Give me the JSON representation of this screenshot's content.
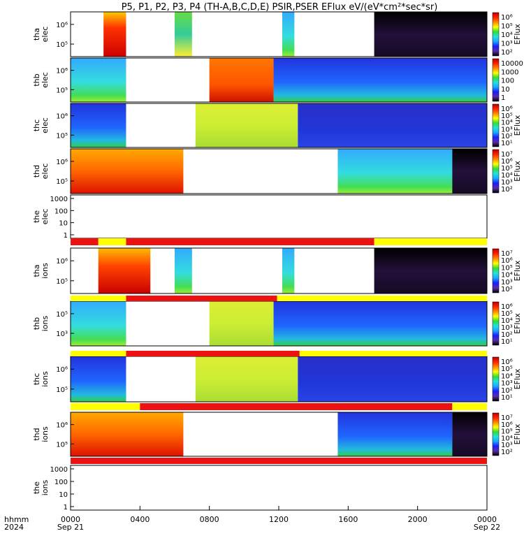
{
  "title": "P5, P1, P2, P3, P4 (TH-A,B,C,D,E) PSIR,PSER EFlux eV/(eV*cm²*sec*sr)",
  "footer": {
    "row1": "hhmm",
    "row2": "2024",
    "xticks": [
      "0000",
      "0400",
      "0800",
      "1200",
      "1600",
      "2000",
      "0000"
    ],
    "dates": [
      "Sep 21",
      "Sep 22"
    ]
  },
  "colors": {
    "bar_red": "#ee1111",
    "bar_yellow": "#ffff00",
    "colormap": [
      "#000000",
      "#5a2da8",
      "#1c1cff",
      "#1aa8ff",
      "#22e0e0",
      "#33dd33",
      "#ffff00",
      "#ff8800",
      "#ff2200",
      "#b80000"
    ]
  },
  "chart_data": [
    {
      "type": "heatmap",
      "name": "tha-elec",
      "ylabel": [
        "tha",
        "elec"
      ],
      "yticks": [
        "10⁶",
        "10⁵"
      ],
      "cbar_label": "EFlux",
      "cbar_ticks": [
        "10⁶",
        "10⁵",
        "10⁴",
        "10³",
        "10²"
      ],
      "segments": [
        {
          "x0": 1.9,
          "x1": 3.2,
          "style": "red"
        },
        {
          "x0": 6.0,
          "x1": 7.0,
          "style": "green"
        },
        {
          "x0": 12.2,
          "x1": 12.9,
          "style": "cyan"
        },
        {
          "x0": 17.5,
          "x1": 24.0,
          "style": "dark"
        }
      ]
    },
    {
      "type": "heatmap",
      "name": "thb-elec",
      "ylabel": [
        "thb",
        "elec"
      ],
      "yticks": [
        "10⁶",
        "10⁵"
      ],
      "cbar_label": "",
      "cbar_ticks": [
        "10000",
        "1000",
        "100",
        "10",
        "1"
      ],
      "segments": [
        {
          "x0": 0.0,
          "x1": 3.2,
          "style": "cyan"
        },
        {
          "x0": 8.0,
          "x1": 11.7,
          "style": "orange"
        },
        {
          "x0": 11.7,
          "x1": 24.0,
          "style": "blue"
        }
      ]
    },
    {
      "type": "heatmap",
      "name": "thc-elec",
      "ylabel": [
        "thc",
        "elec"
      ],
      "yticks": [
        "10⁶",
        "10⁵"
      ],
      "cbar_label": "EFlux",
      "cbar_ticks": [
        "10⁶",
        "10⁵",
        "10⁴",
        "10³",
        "10²",
        "10¹"
      ],
      "segments": [
        {
          "x0": 0.0,
          "x1": 3.2,
          "style": "blue"
        },
        {
          "x0": 7.2,
          "x1": 13.1,
          "style": "yellow"
        },
        {
          "x0": 13.1,
          "x1": 24.0,
          "style": "deepblue"
        }
      ]
    },
    {
      "type": "heatmap",
      "name": "thd-elec",
      "ylabel": [
        "thd",
        "elec"
      ],
      "yticks": [
        "10⁶",
        "10⁵"
      ],
      "cbar_label": "EFlux",
      "cbar_ticks": [
        "10⁷",
        "10⁶",
        "10⁵",
        "10⁴",
        "10³",
        "10²"
      ],
      "segments": [
        {
          "x0": 0.0,
          "x1": 6.5,
          "style": "hot"
        },
        {
          "x0": 15.4,
          "x1": 22.0,
          "style": "cyan"
        },
        {
          "x0": 22.0,
          "x1": 24.0,
          "style": "dark"
        }
      ]
    },
    {
      "type": "line",
      "name": "the-elec",
      "ylabel": [
        "the",
        "elec"
      ],
      "yticks": [
        "1000",
        "100",
        "10",
        "1"
      ]
    },
    {
      "type": "heatmap",
      "name": "tha-ions",
      "ylabel": [
        "tha",
        "ions"
      ],
      "yticks": [
        "10⁶",
        "10⁵"
      ],
      "cbar_label": "EFlux",
      "cbar_ticks": [
        "10⁷",
        "10⁶",
        "10⁵",
        "10⁴",
        "10³",
        "10²"
      ],
      "segments": [
        {
          "x0": 1.6,
          "x1": 4.6,
          "style": "ionhot"
        },
        {
          "x0": 6.0,
          "x1": 7.0,
          "style": "cyan"
        },
        {
          "x0": 12.2,
          "x1": 12.9,
          "style": "cyan"
        },
        {
          "x0": 17.5,
          "x1": 24.0,
          "style": "dark"
        }
      ]
    },
    {
      "type": "heatmap",
      "name": "thb-ions",
      "ylabel": [
        "thb",
        "ions"
      ],
      "yticks": [
        "10⁵",
        "10³"
      ],
      "cbar_label": "EFlux",
      "cbar_ticks": [
        "10⁶",
        "10⁵",
        "10⁴",
        "10³",
        "10²",
        "10¹"
      ],
      "segments": [
        {
          "x0": 0.0,
          "x1": 3.2,
          "style": "cyan"
        },
        {
          "x0": 8.0,
          "x1": 11.7,
          "style": "yellow"
        },
        {
          "x0": 11.7,
          "x1": 24.0,
          "style": "blue"
        }
      ]
    },
    {
      "type": "heatmap",
      "name": "thc-ions",
      "ylabel": [
        "thc",
        "ions"
      ],
      "yticks": [
        "10⁶",
        "10⁵"
      ],
      "cbar_label": "EFlux",
      "cbar_ticks": [
        "10⁶",
        "10⁵",
        "10⁴",
        "10³",
        "10²",
        "10¹"
      ],
      "segments": [
        {
          "x0": 0.0,
          "x1": 3.2,
          "style": "blue"
        },
        {
          "x0": 7.2,
          "x1": 13.1,
          "style": "yellow"
        },
        {
          "x0": 13.1,
          "x1": 24.0,
          "style": "deepblue"
        }
      ]
    },
    {
      "type": "heatmap",
      "name": "thd-ions",
      "ylabel": [
        "thd",
        "ions"
      ],
      "yticks": [
        "10⁶",
        "10⁵"
      ],
      "cbar_label": "EFlux",
      "cbar_ticks": [
        "10⁷",
        "10⁶",
        "10⁵",
        "10⁴",
        "10³",
        "10²"
      ],
      "segments": [
        {
          "x0": 0.0,
          "x1": 6.5,
          "style": "hot"
        },
        {
          "x0": 15.4,
          "x1": 22.0,
          "style": "blue"
        },
        {
          "x0": 22.0,
          "x1": 24.0,
          "style": "dark"
        }
      ]
    },
    {
      "type": "line",
      "name": "the-ions",
      "ylabel": [
        "the",
        "ions"
      ],
      "yticks": [
        "1000",
        "100",
        "10",
        "1"
      ]
    }
  ],
  "mode_bars": [
    {
      "after": 4,
      "segments": [
        {
          "x0": 0,
          "x1": 1.6,
          "c": "red"
        },
        {
          "x0": 1.6,
          "x1": 3.2,
          "c": "yellow"
        },
        {
          "x0": 3.2,
          "x1": 17.5,
          "c": "red"
        },
        {
          "x0": 17.5,
          "x1": 24,
          "c": "yellow"
        }
      ]
    },
    {
      "after": 5,
      "segments": [
        {
          "x0": 0,
          "x1": 3.2,
          "c": "yellow"
        },
        {
          "x0": 3.2,
          "x1": 11.9,
          "c": "red"
        },
        {
          "x0": 11.9,
          "x1": 24,
          "c": "yellow"
        }
      ]
    },
    {
      "after": 6,
      "segments": [
        {
          "x0": 0,
          "x1": 3.2,
          "c": "yellow"
        },
        {
          "x0": 3.2,
          "x1": 13.2,
          "c": "red"
        },
        {
          "x0": 13.2,
          "x1": 24,
          "c": "yellow"
        }
      ]
    },
    {
      "after": 7,
      "segments": [
        {
          "x0": 0,
          "x1": 4.0,
          "c": "yellow"
        },
        {
          "x0": 4.0,
          "x1": 22.0,
          "c": "red"
        },
        {
          "x0": 22.0,
          "x1": 24,
          "c": "yellow"
        }
      ]
    },
    {
      "after": 8,
      "segments": [
        {
          "x0": 0,
          "x1": 24,
          "c": "red"
        }
      ]
    }
  ]
}
